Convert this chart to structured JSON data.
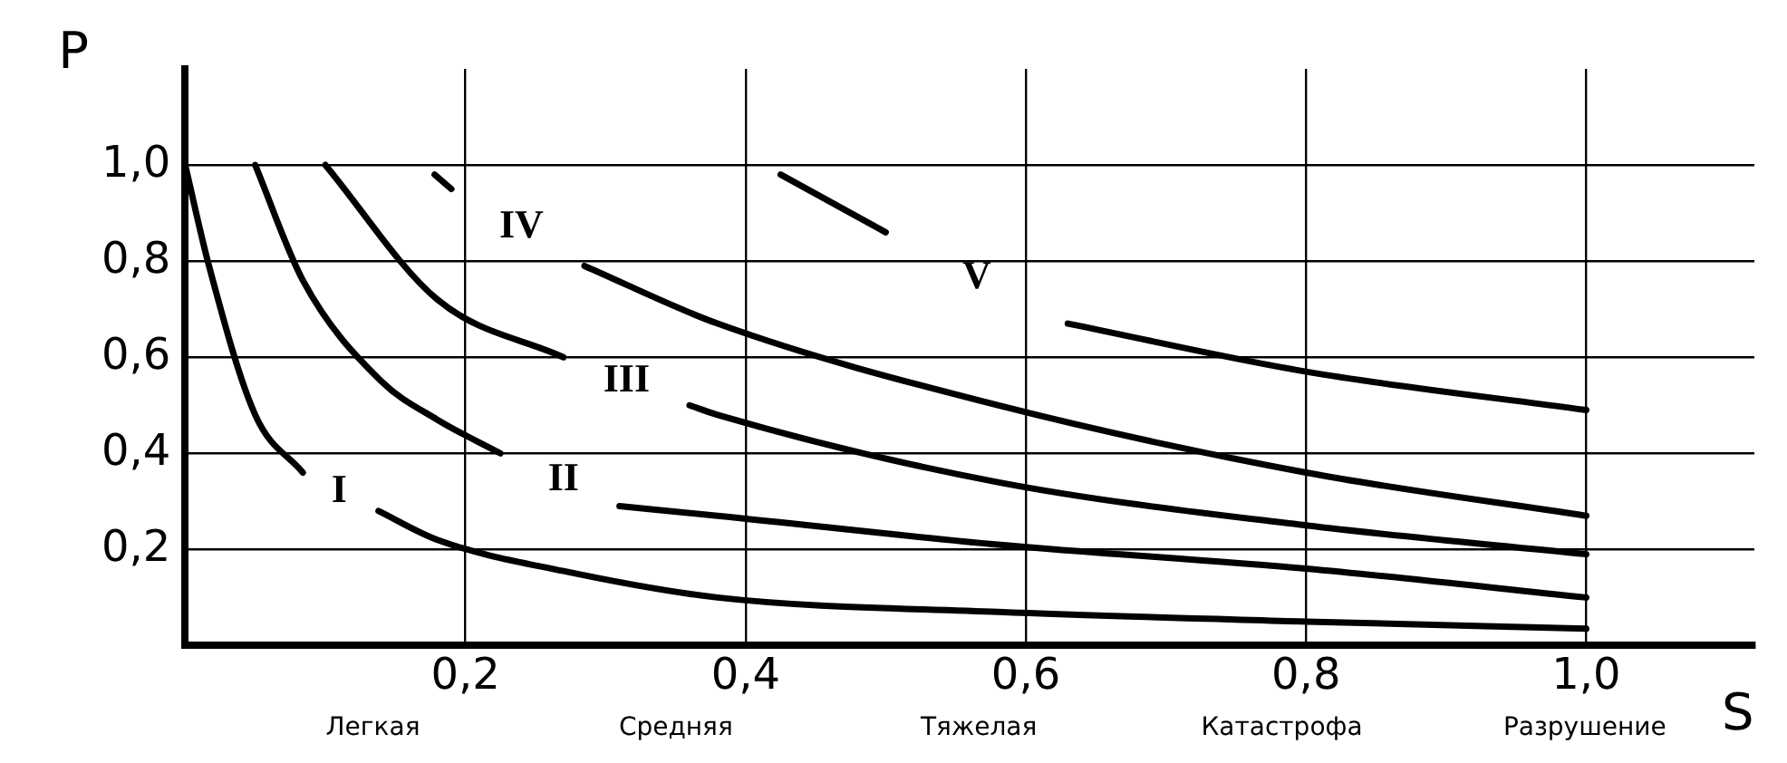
{
  "chart_data": {
    "type": "line",
    "xlabel": "S",
    "ylabel": "P",
    "xlim": [
      0,
      1.12
    ],
    "ylim": [
      0,
      1.2
    ],
    "xticks": [
      {
        "value": 0.2,
        "label": "0,2"
      },
      {
        "value": 0.4,
        "label": "0,4"
      },
      {
        "value": 0.6,
        "label": "0,6"
      },
      {
        "value": 0.8,
        "label": "0,8"
      },
      {
        "value": 1.0,
        "label": "1,0"
      }
    ],
    "yticks": [
      {
        "value": 0.2,
        "label": "0,2"
      },
      {
        "value": 0.4,
        "label": "0,4"
      },
      {
        "value": 0.6,
        "label": "0,6"
      },
      {
        "value": 0.8,
        "label": "0,8"
      },
      {
        "value": 1.0,
        "label": "1,0"
      }
    ],
    "grid": true,
    "legend": false,
    "marker": "none",
    "line_style": "solid",
    "series": [
      {
        "name": "I",
        "color": "#000000",
        "x": [
          0,
          0.017,
          0.05,
          0.084,
          0.11,
          0.138,
          0.18,
          0.27,
          0.38,
          0.58,
          0.8,
          1.0
        ],
        "values": [
          1.0,
          0.79,
          0.48,
          0.36,
          null,
          0.28,
          0.22,
          0.155,
          0.1,
          0.07,
          0.05,
          0.035
        ]
      },
      {
        "name": "II",
        "color": "#000000",
        "x": [
          0.05,
          0.084,
          0.14,
          0.18,
          0.225,
          0.27,
          0.31,
          0.38,
          0.58,
          0.8,
          1.0
        ],
        "values": [
          1.0,
          0.76,
          0.55,
          0.47,
          0.4,
          null,
          0.29,
          0.27,
          0.21,
          0.16,
          0.1
        ]
      },
      {
        "name": "III",
        "color": "#000000",
        "x": [
          0.1,
          0.18,
          0.27,
          0.315,
          0.36,
          0.38,
          0.58,
          0.8,
          1.0
        ],
        "values": [
          1.0,
          0.72,
          0.6,
          null,
          0.5,
          0.48,
          0.34,
          0.25,
          0.19
        ]
      },
      {
        "name": "IV",
        "color": "#000000",
        "x": [
          0.178,
          0.19,
          0.24,
          0.285,
          0.38,
          0.58,
          0.8,
          1.0
        ],
        "values": [
          0.98,
          0.95,
          null,
          0.79,
          0.67,
          0.5,
          0.36,
          0.27
        ]
      },
      {
        "name": "V",
        "color": "#000000",
        "x": [
          0.425,
          0.5,
          0.565,
          0.63,
          0.8,
          1.0
        ],
        "values": [
          0.98,
          0.86,
          null,
          0.67,
          0.57,
          0.49
        ]
      }
    ],
    "annotations": [
      "Легкая",
      "Средняя",
      "Тяжелая",
      "Катастрофа",
      "Разрушение"
    ]
  }
}
